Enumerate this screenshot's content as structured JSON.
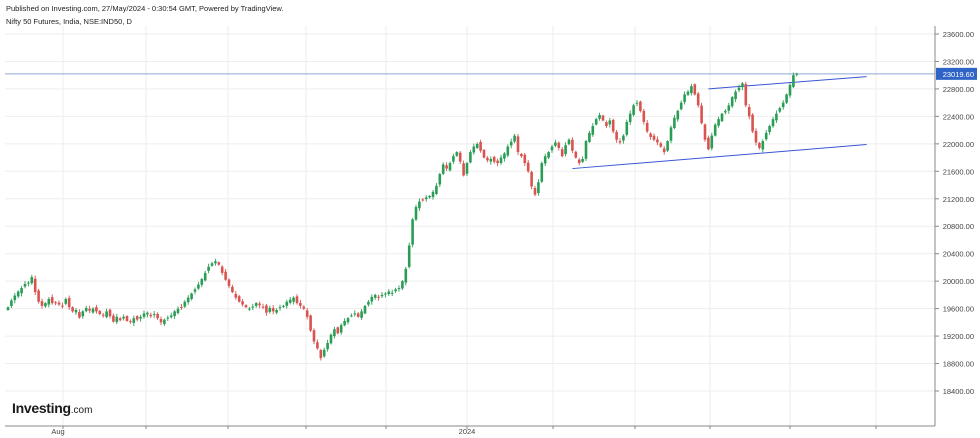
{
  "header": {
    "published": "Published on Investing.com, 27/May/2024 - 0:30:54 GMT, Powered by TradingView.",
    "symbol": "Nifty 50 Futures, India, NSE:IND50, D"
  },
  "logo": {
    "brand": "Investing",
    "suffix": ".com"
  },
  "colors": {
    "up": "#2a9d55",
    "down": "#d9534f",
    "grid": "#eeeeee",
    "price_line": "#8fa9d6",
    "price_label_bg": "#2f63c6",
    "trendline": "#3a56d4"
  },
  "chart_data": {
    "type": "candlestick",
    "title": "",
    "ylim": [
      18400,
      23600
    ],
    "y_ticks": [
      "23600.00",
      "23200.00",
      "22800.00",
      "22400.00",
      "22000.00",
      "21600.00",
      "21200.00",
      "20800.00",
      "20400.00",
      "20000.00",
      "19600.00",
      "19200.00",
      "18800.00",
      "18400.00"
    ],
    "x_labels": [
      "Aug",
      "2024"
    ],
    "last_price": "23019.60",
    "closes": [
      19620,
      19720,
      19790,
      19850,
      19900,
      19960,
      19980,
      20060,
      19840,
      19700,
      19640,
      19680,
      19740,
      19680,
      19690,
      19660,
      19640,
      19740,
      19620,
      19560,
      19580,
      19470,
      19560,
      19610,
      19570,
      19600,
      19560,
      19520,
      19500,
      19560,
      19490,
      19410,
      19480,
      19430,
      19480,
      19420,
      19410,
      19460,
      19440,
      19480,
      19530,
      19540,
      19490,
      19520,
      19460,
      19400,
      19440,
      19470,
      19500,
      19560,
      19600,
      19620,
      19700,
      19760,
      19820,
      19880,
      19950,
      20030,
      20120,
      20210,
      20260,
      20290,
      20240,
      20120,
      20020,
      19930,
      19840,
      19760,
      19700,
      19660,
      19620,
      19600,
      19630,
      19680,
      19650,
      19620,
      19540,
      19610,
      19560,
      19580,
      19620,
      19640,
      19700,
      19730,
      19760,
      19680,
      19640,
      19600,
      19480,
      19280,
      19120,
      19020,
      18880,
      19000,
      19100,
      19220,
      19300,
      19240,
      19360,
      19420,
      19460,
      19500,
      19530,
      19480,
      19560,
      19640,
      19700,
      19770,
      19800,
      19760,
      19800,
      19820,
      19850,
      19830,
      19880,
      19900,
      20000,
      20180,
      20520,
      20900,
      21080,
      21160,
      21180,
      21220,
      21240,
      21300,
      21390,
      21560,
      21700,
      21640,
      21720,
      21820,
      21880,
      21740,
      21540,
      21720,
      21880,
      21960,
      22000,
      21900,
      21800,
      21760,
      21780,
      21740,
      21720,
      21800,
      21860,
      21960,
      22030,
      22120,
      21880,
      21820,
      21720,
      21600,
      21380,
      21260,
      21440,
      21720,
      21820,
      21880,
      21960,
      22020,
      21940,
      21820,
      21980,
      22060,
      21900,
      21800,
      21720,
      21780,
      22040,
      22160,
      22260,
      22360,
      22420,
      22340,
      22260,
      22340,
      22180,
      22060,
      22020,
      22120,
      22320,
      22440,
      22560,
      22600,
      22480,
      22320,
      22180,
      22100,
      22060,
      22020,
      21960,
      21880,
      22040,
      22240,
      22380,
      22480,
      22600,
      22720,
      22760,
      22840,
      22720,
      22560,
      22300,
      22060,
      21920,
      22120,
      22280,
      22360,
      22440,
      22480,
      22560,
      22680,
      22760,
      22820,
      22880,
      22560,
      22400,
      22180,
      22020,
      21940,
      22040,
      22160,
      22260,
      22360,
      22440,
      22520,
      22600,
      22720,
      22860,
      23000,
      23019.6
    ],
    "trendlines": [
      {
        "name": "upper",
        "from": [
          206,
          22800
        ],
        "to": [
          249,
          22980
        ]
      },
      {
        "name": "lower",
        "from": [
          166,
          21640
        ],
        "to": [
          249,
          21990
        ]
      }
    ]
  }
}
